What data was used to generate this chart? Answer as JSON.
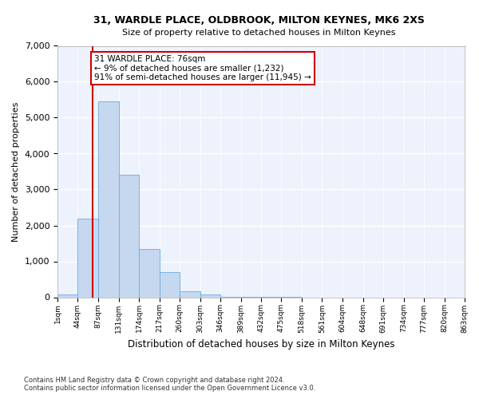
{
  "title1": "31, WARDLE PLACE, OLDBROOK, MILTON KEYNES, MK6 2XS",
  "title2": "Size of property relative to detached houses in Milton Keynes",
  "xlabel": "Distribution of detached houses by size in Milton Keynes",
  "ylabel": "Number of detached properties",
  "footnote1": "Contains HM Land Registry data © Crown copyright and database right 2024.",
  "footnote2": "Contains public sector information licensed under the Open Government Licence v3.0.",
  "annotation_line1": "31 WARDLE PLACE: 76sqm",
  "annotation_line2": "← 9% of detached houses are smaller (1,232)",
  "annotation_line3": "91% of semi-detached houses are larger (11,945) →",
  "bar_color": "#c5d8ef",
  "bar_edge_color": "#6aabe0",
  "marker_color": "#cc0000",
  "background_color": "#eef2fc",
  "bin_edges": [
    1,
    44,
    87,
    131,
    174,
    217,
    260,
    303,
    346,
    389,
    432,
    475,
    518,
    561,
    604,
    648,
    691,
    734,
    777,
    820,
    863
  ],
  "bar_heights": [
    70,
    2200,
    5450,
    3400,
    1350,
    700,
    175,
    80,
    20,
    5,
    2,
    1,
    0,
    0,
    0,
    0,
    0,
    0,
    0,
    0
  ],
  "property_size": 76,
  "ylim": [
    0,
    7000
  ],
  "yticks": [
    0,
    1000,
    2000,
    3000,
    4000,
    5000,
    6000,
    7000
  ]
}
